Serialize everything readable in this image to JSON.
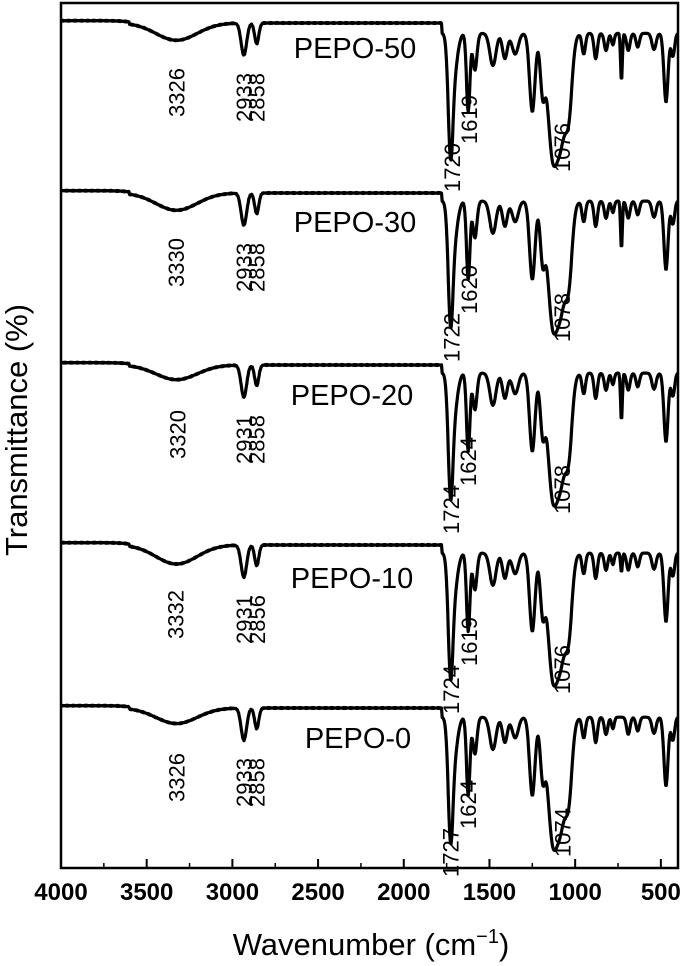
{
  "chart_data": {
    "type": "line",
    "title": "",
    "xlabel": "Wavenumber (cm",
    "xlabel_superscript": "−1",
    "xlabel_close": ")",
    "ylabel": "Transmittance (%)",
    "xlim": [
      4000,
      400
    ],
    "x_reversed": true,
    "y_ticks_shown": false,
    "grid": false,
    "x_ticks": [
      4000,
      3500,
      3000,
      2500,
      2000,
      1500,
      1000,
      500
    ],
    "x_tick_labels": [
      "4000",
      "3500",
      "3000",
      "2500",
      "2000",
      "1500",
      "1000",
      "500"
    ],
    "stacked_offset": true,
    "series": [
      {
        "name": "PEPO-50",
        "peaks": [
          {
            "x": 3326,
            "label": "3326"
          },
          {
            "x": 2933,
            "label": "2933"
          },
          {
            "x": 2858,
            "label": "2858"
          },
          {
            "x": 1720,
            "label": "1720"
          },
          {
            "x": 1619,
            "label": "1619"
          },
          {
            "x": 1076,
            "label": "1076"
          }
        ]
      },
      {
        "name": "PEPO-30",
        "peaks": [
          {
            "x": 3330,
            "label": "3330"
          },
          {
            "x": 2933,
            "label": "2933"
          },
          {
            "x": 2858,
            "label": "2858"
          },
          {
            "x": 1722,
            "label": "1722"
          },
          {
            "x": 1620,
            "label": "1620"
          },
          {
            "x": 1078,
            "label": "1078"
          }
        ]
      },
      {
        "name": "PEPO-20",
        "peaks": [
          {
            "x": 3320,
            "label": "3320"
          },
          {
            "x": 2931,
            "label": "2931"
          },
          {
            "x": 2858,
            "label": "2858"
          },
          {
            "x": 1724,
            "label": "1724"
          },
          {
            "x": 1624,
            "label": "1624"
          },
          {
            "x": 1078,
            "label": "1078"
          }
        ]
      },
      {
        "name": "PEPO-10",
        "peaks": [
          {
            "x": 3332,
            "label": "3332"
          },
          {
            "x": 2931,
            "label": "2931"
          },
          {
            "x": 2856,
            "label": "2856"
          },
          {
            "x": 1724,
            "label": "1724"
          },
          {
            "x": 1619,
            "label": "1619"
          },
          {
            "x": 1076,
            "label": "1076"
          }
        ]
      },
      {
        "name": "PEPO-0",
        "peaks": [
          {
            "x": 3326,
            "label": "3326"
          },
          {
            "x": 2933,
            "label": "2933"
          },
          {
            "x": 2858,
            "label": "2858"
          },
          {
            "x": 1727,
            "label": "1727"
          },
          {
            "x": 1624,
            "label": "1624"
          },
          {
            "x": 1074,
            "label": "1074"
          }
        ]
      }
    ]
  }
}
